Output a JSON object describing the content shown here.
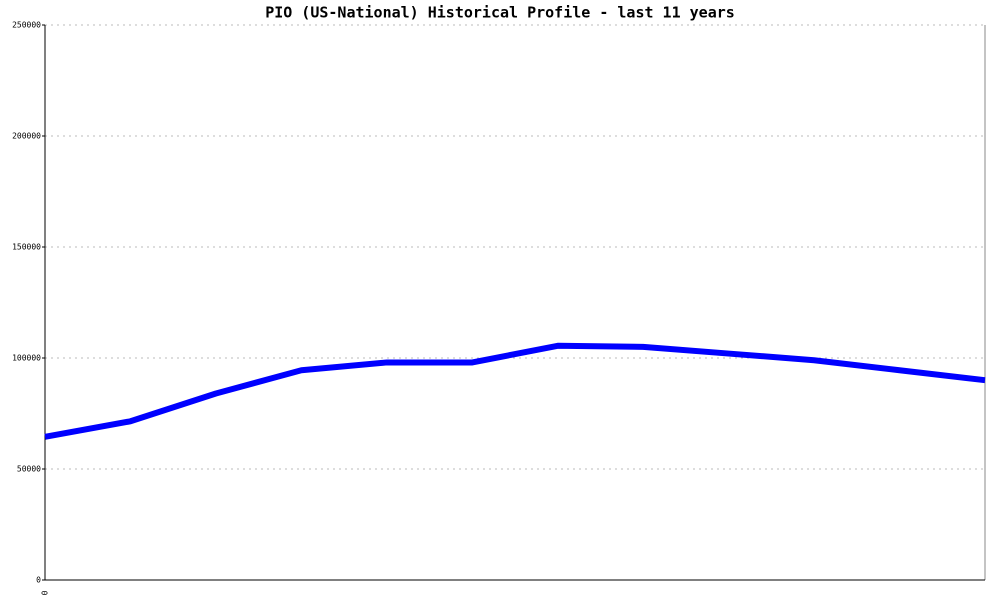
{
  "chart_data": {
    "type": "line",
    "title": "PIO (US-National) Historical Profile - last 11 years",
    "x": [
      0,
      1,
      2,
      3,
      4,
      5,
      6,
      7,
      8,
      9,
      10,
      11
    ],
    "xlim": [
      0,
      11
    ],
    "xticks": [
      0
    ],
    "series": [
      {
        "name": "PIO",
        "color": "#0000ff",
        "values": [
          64500,
          71500,
          84000,
          94500,
          98000,
          98000,
          105500,
          105000,
          102000,
          99000,
          94500,
          90000
        ]
      }
    ],
    "ylim": [
      0,
      250000
    ],
    "yticks": [
      0,
      50000,
      100000,
      150000,
      200000,
      250000
    ],
    "grid": true
  }
}
